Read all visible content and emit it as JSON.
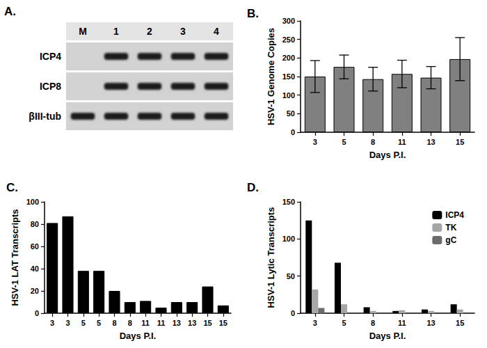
{
  "blot": {
    "title": "A.",
    "lanes": [
      "M",
      "1",
      "2",
      "3",
      "4"
    ],
    "rows": [
      {
        "label": "ICP4",
        "bands": [
          false,
          true,
          true,
          true,
          true
        ]
      },
      {
        "label": "ICP8",
        "bands": [
          false,
          true,
          true,
          true,
          true
        ]
      },
      {
        "label": "βIII-tub",
        "bands": [
          true,
          true,
          true,
          true,
          true
        ]
      }
    ]
  },
  "chart_data": [
    {
      "type": "bar",
      "title": "B.",
      "xlabel": "Days P.I.",
      "ylabel": "HSV-1 Genome Copies",
      "categories": [
        "3",
        "5",
        "8",
        "11",
        "13",
        "15"
      ],
      "values": [
        150,
        176,
        143,
        157,
        147,
        197
      ],
      "errors": [
        43,
        32,
        32,
        37,
        30,
        58
      ],
      "color": "#808080",
      "ylim": [
        0,
        300
      ],
      "yticks": [
        0,
        50,
        100,
        150,
        200,
        250,
        300
      ],
      "grid": false
    },
    {
      "type": "bar",
      "title": "C.",
      "xlabel": "Days P.I.",
      "ylabel": "HSV-1 LAT Transcripts",
      "categories": [
        "3",
        "3",
        "5",
        "5",
        "8",
        "8",
        "11",
        "11",
        "13",
        "13",
        "15",
        "15"
      ],
      "values": [
        81,
        87,
        38,
        38,
        20,
        10,
        11,
        5,
        10,
        10,
        24,
        7
      ],
      "color": "#000000",
      "ylim": [
        0,
        100
      ],
      "yticks": [
        0,
        20,
        40,
        60,
        80,
        100
      ],
      "grid": false
    },
    {
      "type": "bar",
      "title": "D.",
      "xlabel": "Days P.I.",
      "ylabel": "HSV-1 Lytic Transcripts",
      "categories": [
        "3",
        "5",
        "8",
        "11",
        "13",
        "15"
      ],
      "series": [
        {
          "name": "ICP4",
          "color": "#000000",
          "values": [
            125,
            68,
            8,
            3,
            5,
            12
          ]
        },
        {
          "name": "TK",
          "color": "#a6a6a6",
          "values": [
            32,
            12,
            3,
            4,
            3,
            5
          ]
        },
        {
          "name": "gC",
          "color": "#6b6b6b",
          "values": [
            7,
            0,
            0,
            0,
            0,
            0
          ]
        }
      ],
      "legend": "upper right",
      "ylim": [
        0,
        150
      ],
      "yticks": [
        0,
        50,
        100,
        150
      ],
      "grid": false
    }
  ]
}
